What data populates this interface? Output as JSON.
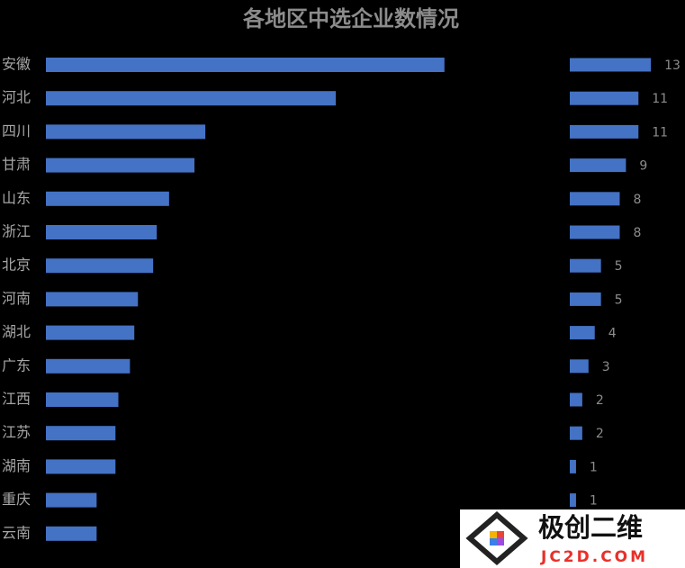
{
  "chart_data": [
    {
      "type": "bar",
      "title": "各地区中选企业数情况",
      "categories": [
        "安徽",
        "河北",
        "四川",
        "甘肃",
        "山东",
        "浙江",
        "北京",
        "河南",
        "湖北",
        "广东",
        "江西",
        "江苏",
        "湖南",
        "重庆",
        "云南"
      ],
      "values": [
        55,
        40,
        22,
        20.5,
        17,
        15.3,
        14.8,
        12.7,
        12.2,
        11.6,
        10,
        9.6,
        9.6,
        7,
        7
      ],
      "xlim": [
        0,
        60
      ],
      "color": "#4472c4"
    },
    {
      "type": "bar",
      "values": [
        13,
        11,
        11,
        9,
        8,
        8,
        5,
        5,
        4,
        3,
        2,
        2,
        1,
        1
      ],
      "xlim": [
        0,
        15
      ],
      "color": "#4472c4"
    }
  ],
  "watermark": {
    "brand": "极创二维",
    "url": "JC2D.COM"
  }
}
